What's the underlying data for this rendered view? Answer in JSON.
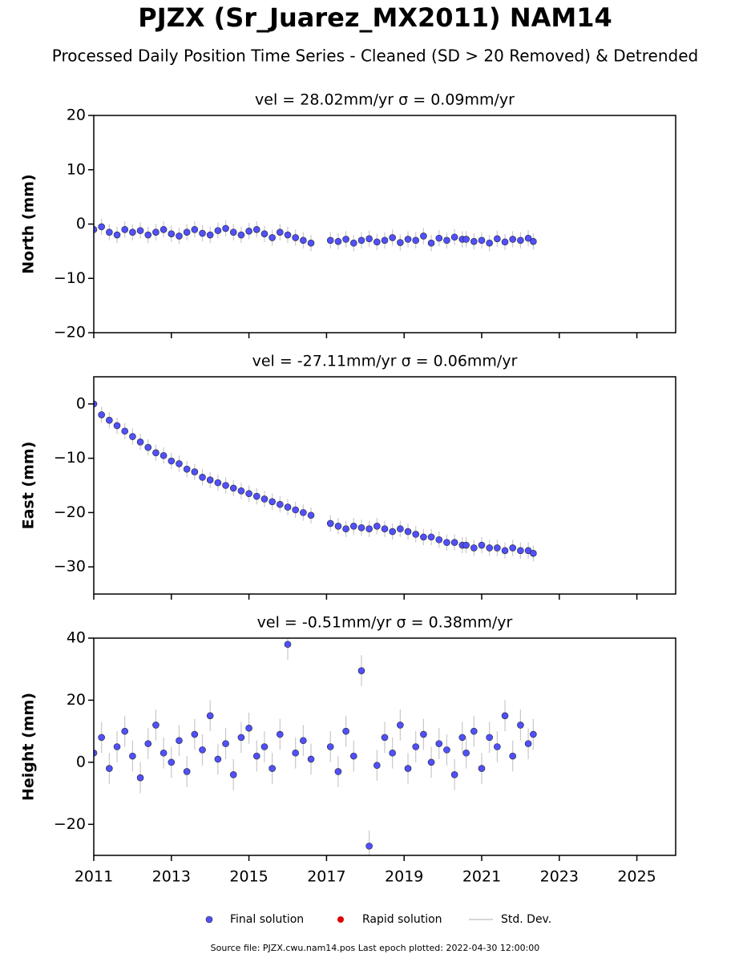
{
  "title": "PJZX (Sr_Juarez_MX2011) NAM14",
  "subtitle": "Processed Daily Position Time Series - Cleaned (SD > 20 Removed) & Detrended",
  "legend": [
    {
      "name": "Final solution",
      "color": "#5050ff"
    },
    {
      "name": "Rapid solution",
      "color": "#e00000"
    },
    {
      "name": "Std. Dev.",
      "color": "#c8c8c8"
    }
  ],
  "source": "Source file: PJZX.cwu.nam14.pos  Last epoch plotted: 2022-04-30 12:00:00",
  "chart_data": [
    {
      "type": "scatter",
      "title": "vel = 28.02mm/yr   σ = 0.09mm/yr",
      "y_label": "North (mm)",
      "xlim": [
        2011,
        2026
      ],
      "xticks": [
        2011,
        2013,
        2015,
        2017,
        2019,
        2021,
        2023,
        2025
      ],
      "ylim": [
        -20,
        20
      ],
      "yticks": [
        {
          "value": -20,
          "label": "−20"
        },
        {
          "value": -10,
          "label": "−10"
        },
        0,
        10,
        20
      ],
      "x": [
        2011.0,
        2011.2,
        2011.4,
        2011.6,
        2011.8,
        2012.0,
        2012.2,
        2012.4,
        2012.6,
        2012.8,
        2013.0,
        2013.2,
        2013.4,
        2013.6,
        2013.8,
        2014.0,
        2014.2,
        2014.4,
        2014.6,
        2014.8,
        2015.0,
        2015.2,
        2015.4,
        2015.6,
        2015.8,
        2016.0,
        2016.2,
        2016.4,
        2016.6,
        2017.1,
        2017.3,
        2017.5,
        2017.7,
        2017.9,
        2018.1,
        2018.3,
        2018.5,
        2018.7,
        2018.9,
        2019.1,
        2019.3,
        2019.5,
        2019.7,
        2019.9,
        2020.1,
        2020.3,
        2020.5,
        2020.6,
        2020.8,
        2021.0,
        2021.2,
        2021.4,
        2021.6,
        2021.8,
        2022.0,
        2022.2,
        2022.33
      ],
      "series": [
        {
          "name": "Final solution",
          "color": "#5050ff",
          "values": [
            -1,
            -0.5,
            -1.5,
            -2,
            -1,
            -1.5,
            -1.2,
            -2,
            -1.5,
            -1,
            -1.8,
            -2.2,
            -1.5,
            -1,
            -1.7,
            -2,
            -1.2,
            -0.8,
            -1.5,
            -2,
            -1.3,
            -1,
            -1.8,
            -2.5,
            -1.5,
            -2,
            -2.5,
            -3,
            -3.5,
            -3,
            -3.2,
            -2.8,
            -3.5,
            -3,
            -2.7,
            -3.3,
            -3,
            -2.5,
            -3.4,
            -2.8,
            -3,
            -2.2,
            -3.5,
            -2.6,
            -3,
            -2.4,
            -2.8,
            -2.8,
            -3.2,
            -3,
            -3.5,
            -2.7,
            -3.3,
            -2.8,
            -3,
            -2.6,
            -3.2
          ],
          "errors": [
            1.5,
            1.5,
            1.5,
            1.5,
            1.5,
            1.5,
            1.5,
            1.5,
            1.5,
            1.5,
            1.5,
            1.5,
            1.5,
            1.5,
            1.5,
            1.5,
            1.5,
            1.5,
            1.5,
            1.5,
            1.5,
            1.5,
            1.5,
            1.5,
            1.5,
            1.5,
            1.5,
            1.5,
            1.5,
            1.5,
            1.5,
            1.5,
            1.5,
            1.5,
            1.5,
            1.5,
            1.5,
            1.5,
            1.5,
            1.5,
            1.5,
            1.5,
            1.5,
            1.5,
            1.5,
            1.5,
            1.5,
            1.5,
            1.5,
            1.5,
            1.5,
            1.5,
            1.5,
            1.5,
            1.5,
            1.5,
            1.5
          ]
        }
      ]
    },
    {
      "type": "scatter",
      "title": "vel = -27.11mm/yr   σ = 0.06mm/yr",
      "y_label": "East (mm)",
      "xlim": [
        2011,
        2026
      ],
      "xticks": [
        2011,
        2013,
        2015,
        2017,
        2019,
        2021,
        2023,
        2025
      ],
      "ylim": [
        -35,
        5
      ],
      "yticks": [
        {
          "value": -30,
          "label": "−30"
        },
        {
          "value": -20,
          "label": "−20"
        },
        {
          "value": -10,
          "label": "−10"
        },
        0
      ],
      "x": [
        2011.0,
        2011.2,
        2011.4,
        2011.6,
        2011.8,
        2012.0,
        2012.2,
        2012.4,
        2012.6,
        2012.8,
        2013.0,
        2013.2,
        2013.4,
        2013.6,
        2013.8,
        2014.0,
        2014.2,
        2014.4,
        2014.6,
        2014.8,
        2015.0,
        2015.2,
        2015.4,
        2015.6,
        2015.8,
        2016.0,
        2016.2,
        2016.4,
        2016.6,
        2017.1,
        2017.3,
        2017.5,
        2017.7,
        2017.9,
        2018.1,
        2018.3,
        2018.5,
        2018.7,
        2018.9,
        2019.1,
        2019.3,
        2019.5,
        2019.7,
        2019.9,
        2020.1,
        2020.3,
        2020.5,
        2020.6,
        2020.8,
        2021.0,
        2021.2,
        2021.4,
        2021.6,
        2021.8,
        2022.0,
        2022.2,
        2022.33
      ],
      "series": [
        {
          "name": "Final solution",
          "color": "#5050ff",
          "values": [
            0,
            -2,
            -3,
            -4,
            -5,
            -6,
            -7,
            -8,
            -9,
            -9.5,
            -10.5,
            -11,
            -12,
            -12.5,
            -13.5,
            -14,
            -14.5,
            -15,
            -15.5,
            -16,
            -16.5,
            -17,
            -17.5,
            -18,
            -18.5,
            -19,
            -19.5,
            -20,
            -20.5,
            -22,
            -22.5,
            -23,
            -22.5,
            -22.8,
            -23,
            -22.5,
            -23,
            -23.5,
            -23,
            -23.5,
            -24,
            -24.5,
            -24.5,
            -25,
            -25.5,
            -25.5,
            -26,
            -26,
            -26.5,
            -26,
            -26.5,
            -26.5,
            -27,
            -26.5,
            -27,
            -27,
            -27.5
          ],
          "errors": [
            1.5,
            1.5,
            1.5,
            1.5,
            1.5,
            1.5,
            1.5,
            1.5,
            1.5,
            1.5,
            1.5,
            1.5,
            1.5,
            1.5,
            1.5,
            1.5,
            1.5,
            1.5,
            1.5,
            1.5,
            1.5,
            1.5,
            1.5,
            1.5,
            1.5,
            1.5,
            1.5,
            1.5,
            1.5,
            1.5,
            1.5,
            1.5,
            1.5,
            1.5,
            1.5,
            1.5,
            1.5,
            1.5,
            1.5,
            1.5,
            1.5,
            1.5,
            1.5,
            1.5,
            1.5,
            1.5,
            1.5,
            1.5,
            1.5,
            1.5,
            1.5,
            1.5,
            1.5,
            1.5,
            1.5,
            1.5,
            1.5
          ]
        }
      ]
    },
    {
      "type": "scatter",
      "title": "vel = -0.51mm/yr   σ = 0.38mm/yr",
      "y_label": "Height (mm)",
      "xlim": [
        2011,
        2026
      ],
      "xticks": [
        2011,
        2013,
        2015,
        2017,
        2019,
        2021,
        2023,
        2025
      ],
      "ylim": [
        -30,
        40
      ],
      "yticks": [
        {
          "value": -20,
          "label": "−20"
        },
        0,
        20,
        40
      ],
      "x": [
        2011.0,
        2011.2,
        2011.4,
        2011.6,
        2011.8,
        2012.0,
        2012.2,
        2012.4,
        2012.6,
        2012.8,
        2013.0,
        2013.2,
        2013.4,
        2013.6,
        2013.8,
        2014.0,
        2014.2,
        2014.4,
        2014.6,
        2014.8,
        2015.0,
        2015.2,
        2015.4,
        2015.6,
        2015.8,
        2016.0,
        2016.2,
        2016.4,
        2016.6,
        2017.1,
        2017.3,
        2017.5,
        2017.7,
        2017.9,
        2018.1,
        2018.3,
        2018.5,
        2018.7,
        2018.9,
        2019.1,
        2019.3,
        2019.5,
        2019.7,
        2019.9,
        2020.1,
        2020.3,
        2020.5,
        2020.6,
        2020.8,
        2021.0,
        2021.2,
        2021.4,
        2021.6,
        2021.8,
        2022.0,
        2022.2,
        2022.33
      ],
      "series": [
        {
          "name": "Final solution",
          "color": "#5050ff",
          "values": [
            3,
            8,
            -2,
            5,
            10,
            2,
            -5,
            6,
            12,
            3,
            0,
            7,
            -3,
            9,
            4,
            15,
            1,
            6,
            -4,
            8,
            11,
            2,
            5,
            -2,
            9,
            38,
            3,
            7,
            1,
            5,
            -3,
            10,
            2,
            29.5,
            -27,
            -1,
            8,
            3,
            12,
            -2,
            5,
            9,
            0,
            6,
            4,
            -4,
            8,
            3,
            10,
            -2,
            8,
            5,
            15,
            2,
            12,
            6,
            9
          ],
          "errors": [
            5,
            5,
            5,
            5,
            5,
            5,
            5,
            5,
            5,
            5,
            5,
            5,
            5,
            5,
            5,
            5,
            5,
            5,
            5,
            5,
            5,
            5,
            5,
            5,
            5,
            5,
            5,
            5,
            5,
            5,
            5,
            5,
            5,
            5,
            5,
            5,
            5,
            5,
            5,
            5,
            5,
            5,
            5,
            5,
            5,
            5,
            5,
            5,
            5,
            5,
            5,
            5,
            5,
            5,
            5,
            5,
            5
          ]
        }
      ]
    }
  ]
}
